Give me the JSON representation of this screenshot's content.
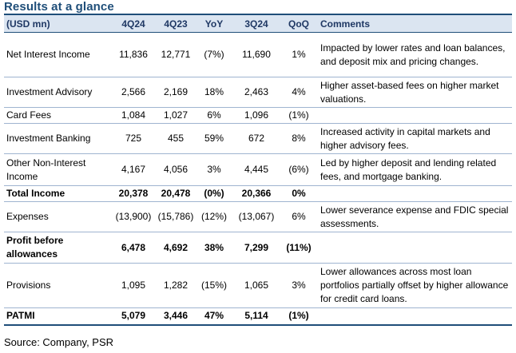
{
  "title": "Results at a glance",
  "source": "Source: Company, PSR",
  "header": [
    "(USD mn)",
    "4Q24",
    "4Q23",
    "YoY",
    "3Q24",
    "QoQ",
    "Comments"
  ],
  "rows": [
    {
      "label": "Net Interest Income",
      "v": [
        "11,836",
        "12,771",
        "(7%)",
        "11,690",
        "1%"
      ],
      "comment": "Impacted by lower rates and loan balances, and deposit mix and pricing changes.",
      "bold": false
    },
    {
      "label": "Investment Advisory",
      "v": [
        "2,566",
        "2,169",
        "18%",
        "2,463",
        "4%"
      ],
      "comment": "Higher asset-based fees on higher market valuations.",
      "bold": false
    },
    {
      "label": "Card Fees",
      "v": [
        "1,084",
        "1,027",
        "6%",
        "1,096",
        "(1%)"
      ],
      "comment": "",
      "bold": false
    },
    {
      "label": "Investment Banking",
      "v": [
        "725",
        "455",
        "59%",
        "672",
        "8%"
      ],
      "comment": "Increased activity in capital markets and higher advisory fees.",
      "bold": false
    },
    {
      "label": "Other Non-Interest Income",
      "v": [
        "4,167",
        "4,056",
        "3%",
        "4,445",
        "(6%)"
      ],
      "comment": "Led by higher deposit and lending related fees, and mortgage banking.",
      "bold": false
    },
    {
      "label": "Total Income",
      "v": [
        "20,378",
        "20,478",
        "(0%)",
        "20,366",
        "0%"
      ],
      "comment": "",
      "bold": true
    },
    {
      "label": "Expenses",
      "v": [
        "(13,900)",
        "(15,786)",
        "(12%)",
        "(13,067)",
        "6%"
      ],
      "comment": "Lower severance expense and FDIC special assessments.",
      "bold": false
    },
    {
      "label": "Profit before allowances",
      "v": [
        "6,478",
        "4,692",
        "38%",
        "7,299",
        "(11%)"
      ],
      "comment": "",
      "bold": true
    },
    {
      "label": "Provisions",
      "v": [
        "1,095",
        "1,282",
        "(15%)",
        "1,065",
        "3%"
      ],
      "comment": "Lower allowances across most loan portfolios partially offset by higher allowance for credit card loans.",
      "bold": false
    },
    {
      "label": "PATMI",
      "v": [
        "5,079",
        "3,446",
        "47%",
        "5,114",
        "(1%)"
      ],
      "comment": "",
      "bold": true
    }
  ]
}
